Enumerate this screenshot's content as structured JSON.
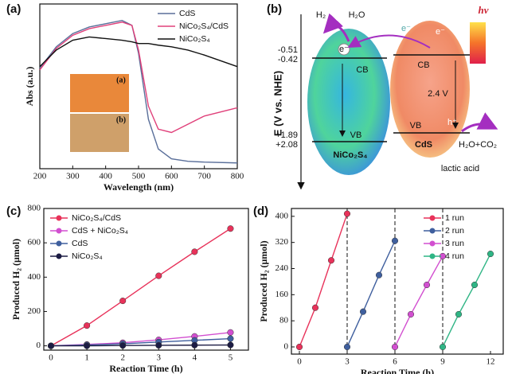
{
  "chart_data": [
    {
      "type": "line",
      "panel_label": "(a)",
      "x_label": "Wavelength (nm)",
      "y_label": "Abs (a.u.)",
      "x": [
        200,
        250,
        300,
        350,
        400,
        450,
        480,
        500,
        530,
        560,
        600,
        650,
        700,
        800
      ],
      "xlim": [
        200,
        800
      ],
      "xticks": [
        200,
        300,
        400,
        500,
        600,
        700,
        800
      ],
      "ylim": [
        0,
        1
      ],
      "legend": "upper right",
      "markers": false,
      "inset_labels": [
        "(a)",
        "(b)"
      ],
      "series": [
        {
          "name": "CdS",
          "color": "#5a6f9a",
          "values": [
            0.61,
            0.74,
            0.82,
            0.86,
            0.88,
            0.9,
            0.87,
            0.7,
            0.3,
            0.12,
            0.06,
            0.045,
            0.04,
            0.035
          ]
        },
        {
          "name": "NiCo₂S₄/CdS",
          "color": "#e0407a",
          "values": [
            0.6,
            0.73,
            0.81,
            0.85,
            0.87,
            0.89,
            0.87,
            0.72,
            0.38,
            0.24,
            0.22,
            0.27,
            0.32,
            0.37
          ]
        },
        {
          "name": "NiCo₂S₄",
          "color": "#111111",
          "values": [
            0.62,
            0.72,
            0.78,
            0.8,
            0.79,
            0.78,
            0.77,
            0.76,
            0.76,
            0.75,
            0.74,
            0.72,
            0.69,
            0.62
          ]
        }
      ]
    },
    {
      "type": "line",
      "panel_label": "(c)",
      "x_label": "Reaction Time (h)",
      "y_label": "Produced H₂ (μmol)",
      "x": [
        0,
        1,
        2,
        3,
        4,
        5
      ],
      "xlim": [
        -0.2,
        5.5
      ],
      "xticks": [
        0,
        1,
        2,
        3,
        4,
        5
      ],
      "ylim": [
        -25,
        800
      ],
      "yticks": [
        0,
        200,
        400,
        600,
        800
      ],
      "legend": "upper left",
      "markers": true,
      "series": [
        {
          "name": "NiCo₂S₄/CdS",
          "color": "#e8325a",
          "values": [
            0,
            118,
            262,
            408,
            548,
            683
          ]
        },
        {
          "name": "CdS + NiCo₂S₄",
          "color": "#d24fd0",
          "values": [
            0,
            8,
            18,
            35,
            55,
            78
          ]
        },
        {
          "name": "CdS",
          "color": "#3f5f9e",
          "values": [
            0,
            5,
            12,
            22,
            32,
            42
          ]
        },
        {
          "name": "NiCo₂S₄",
          "color": "#1c1c44",
          "values": [
            0,
            0,
            2,
            3,
            4,
            5
          ]
        }
      ]
    },
    {
      "type": "line",
      "panel_label": "(d)",
      "x_label": "Reaction Time (h)",
      "y_label": "Produced H₂ (μmol)",
      "xlim": [
        -0.5,
        12.8
      ],
      "xticks": [
        0,
        3,
        6,
        9,
        12
      ],
      "ylim": [
        -22,
        424
      ],
      "yticks": [
        0,
        80,
        160,
        240,
        320,
        400
      ],
      "legend": "upper right",
      "markers": true,
      "run_dividers": true,
      "series": [
        {
          "name": "1 run",
          "color": "#e8325a",
          "x": [
            0,
            1,
            2,
            3
          ],
          "values": [
            0,
            120,
            265,
            408
          ]
        },
        {
          "name": "2 run",
          "color": "#3f5f9e",
          "x": [
            3,
            4,
            5,
            6
          ],
          "values": [
            0,
            108,
            220,
            325
          ]
        },
        {
          "name": "3 run",
          "color": "#d24fd0",
          "x": [
            6,
            7,
            8,
            9
          ],
          "values": [
            0,
            100,
            190,
            278
          ]
        },
        {
          "name": "4 run",
          "color": "#2fb585",
          "x": [
            9,
            10,
            11,
            12
          ],
          "values": [
            0,
            100,
            190,
            285
          ]
        }
      ]
    }
  ],
  "diagram": {
    "panel_label": "(b)",
    "axis_label": "E (V vs. NHE)",
    "levels": [
      "-0.51",
      "-0.42",
      "+1.89",
      "+2.08"
    ],
    "products": [
      "H₂",
      "H₂O"
    ],
    "electrons": [
      "e⁻",
      "e⁻",
      "e⁻"
    ],
    "light": "hv",
    "cb": [
      "CB",
      "CB"
    ],
    "vb": [
      "VB",
      "VB"
    ],
    "gap": "2.4 V",
    "hole": "h⁺",
    "oxidation_product": "H₂O+CO₂",
    "materials": [
      "NiCo₂S₄",
      "CdS"
    ],
    "sacrificial_agent": "lactic acid"
  }
}
